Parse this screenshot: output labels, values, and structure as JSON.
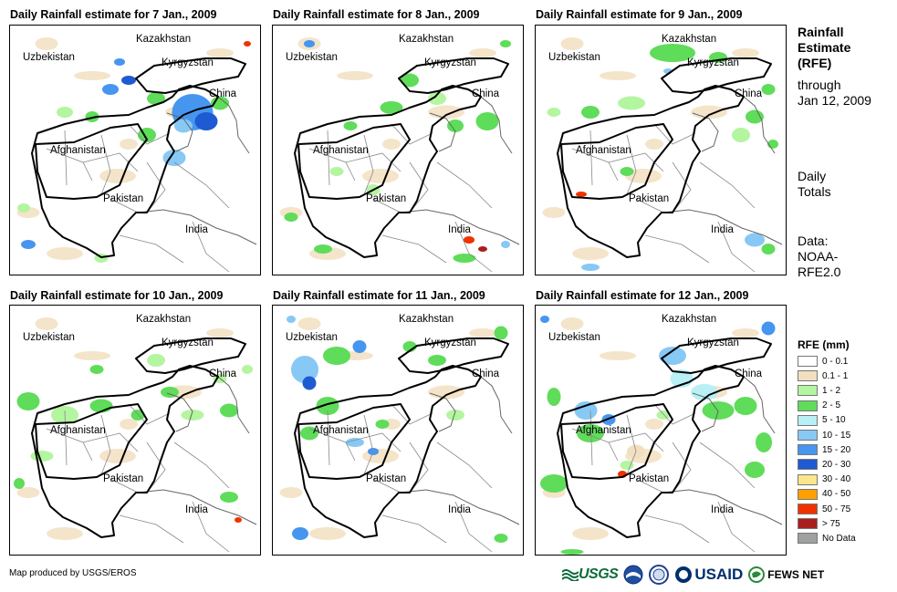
{
  "panels": [
    {
      "title": "Daily Rainfall estimate for 7 Jan., 2009"
    },
    {
      "title": "Daily Rainfall estimate for 8 Jan., 2009"
    },
    {
      "title": "Daily Rainfall estimate for 9 Jan., 2009"
    },
    {
      "title": "Daily Rainfall estimate for 10 Jan., 2009"
    },
    {
      "title": "Daily Rainfall estimate for 11 Jan., 2009"
    },
    {
      "title": "Daily Rainfall estimate for 12 Jan., 2009"
    }
  ],
  "map_labels": {
    "kazakhstan": "Kazakhstan",
    "uzbekistan": "Uzbekistan",
    "kyrgyzstan": "Kyrgyzstan",
    "china": "China",
    "afghanistan": "Afghanistan",
    "pakistan": "Pakistan",
    "india": "India"
  },
  "sidebar": {
    "heading_line1": "Rainfall",
    "heading_line2": "Estimate",
    "heading_line3": "(RFE)",
    "through_line1": "through",
    "through_line2": "Jan 12, 2009",
    "daily_line1": "Daily",
    "daily_line2": "Totals",
    "data_line1": "Data:",
    "data_line2": "NOAA-",
    "data_line3": "RFE2.0"
  },
  "legend": {
    "title": "RFE (mm)",
    "items": [
      {
        "label": "0 - 0.1",
        "color": "#ffffff"
      },
      {
        "label": "0.1 - 1",
        "color": "#f2dfbf"
      },
      {
        "label": "1 - 2",
        "color": "#b4f5a0"
      },
      {
        "label": "2 - 5",
        "color": "#5fdc5a"
      },
      {
        "label": "5 - 10",
        "color": "#b9f0f5"
      },
      {
        "label": "10 - 15",
        "color": "#87c8f5"
      },
      {
        "label": "15 - 20",
        "color": "#4696f0"
      },
      {
        "label": "20 - 30",
        "color": "#1e5ad2"
      },
      {
        "label": "30 - 40",
        "color": "#fae68c"
      },
      {
        "label": "40 - 50",
        "color": "#ffa000"
      },
      {
        "label": "50 - 75",
        "color": "#f03200"
      },
      {
        "label": "> 75",
        "color": "#aa1e1e"
      },
      {
        "label": "No Data",
        "color": "#a0a0a0"
      }
    ]
  },
  "footer": {
    "credit": "Map produced by USGS/EROS",
    "logo_usgs": "USGS",
    "logo_usaid": "USAID",
    "logo_fews": "FEWS NET"
  }
}
